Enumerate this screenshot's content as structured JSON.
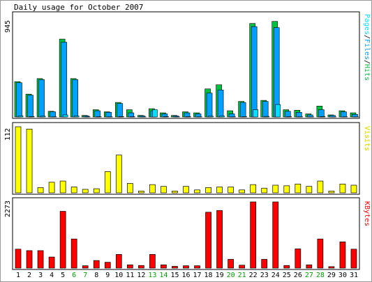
{
  "colors": {
    "background": "#ffffff",
    "frame_outer": "#999999",
    "panel_fill": "#ffffff",
    "hits": "#00c040",
    "files": "#00a0ff",
    "pages": "#00e0ff",
    "visits": "#ffff00",
    "kbytes": "#ff0000",
    "weekend_label": "#00a000",
    "weekday_label": "#000000"
  },
  "chart_data": [
    {
      "type": "bar",
      "title": "Daily usage for October 2007",
      "ylabel_max": "945",
      "legend": [
        "Pages",
        "Files",
        "Hits"
      ],
      "legend_separator": "/",
      "legend_colors": [
        "#00e0ff",
        "#00a0ff",
        "#00c040"
      ],
      "ylim": [
        0,
        945
      ],
      "categories": [
        "1",
        "2",
        "3",
        "4",
        "5",
        "6",
        "7",
        "8",
        "9",
        "10",
        "11",
        "12",
        "13",
        "14",
        "15",
        "16",
        "17",
        "18",
        "19",
        "20",
        "21",
        "22",
        "23",
        "24",
        "25",
        "26",
        "27",
        "28",
        "29",
        "30",
        "31"
      ],
      "weekend_days": [
        "6",
        "7",
        "13",
        "14",
        "20",
        "21",
        "27",
        "28"
      ],
      "series": [
        {
          "name": "Hits",
          "values": [
            340,
            220,
            370,
            55,
            750,
            370,
            15,
            70,
            50,
            140,
            70,
            15,
            80,
            40,
            15,
            50,
            40,
            270,
            310,
            60,
            150,
            900,
            160,
            920,
            70,
            65,
            30,
            105,
            20,
            60,
            40
          ]
        },
        {
          "name": "Files",
          "values": [
            330,
            210,
            360,
            50,
            720,
            360,
            10,
            60,
            45,
            130,
            40,
            10,
            60,
            30,
            10,
            40,
            30,
            230,
            260,
            30,
            140,
            870,
            150,
            860,
            55,
            45,
            20,
            70,
            15,
            50,
            25
          ]
        },
        {
          "name": "Pages",
          "values": [
            10,
            5,
            8,
            2,
            20,
            10,
            2,
            3,
            2,
            5,
            3,
            1,
            70,
            5,
            2,
            3,
            2,
            8,
            10,
            2,
            3,
            70,
            6,
            120,
            3,
            2,
            1,
            5,
            1,
            2,
            1
          ]
        }
      ]
    },
    {
      "type": "bar",
      "ylabel_max": "112",
      "legend": [
        "Visits"
      ],
      "legend_colors": [
        "#ffff00"
      ],
      "ylim": [
        0,
        112
      ],
      "categories": [
        "1",
        "2",
        "3",
        "4",
        "5",
        "6",
        "7",
        "8",
        "9",
        "10",
        "11",
        "12",
        "13",
        "14",
        "15",
        "16",
        "17",
        "18",
        "19",
        "20",
        "21",
        "22",
        "23",
        "24",
        "25",
        "26",
        "27",
        "28",
        "29",
        "30",
        "31"
      ],
      "series": [
        {
          "name": "Visits",
          "values": [
            112,
            108,
            9,
            18,
            20,
            10,
            6,
            7,
            36,
            64,
            16,
            3,
            14,
            11,
            3,
            11,
            5,
            9,
            10,
            10,
            5,
            14,
            8,
            13,
            12,
            15,
            11,
            20,
            3,
            15,
            13
          ]
        }
      ]
    },
    {
      "type": "bar",
      "ylabel_max": "2273",
      "legend": [
        "KBytes"
      ],
      "legend_colors": [
        "#ff0000"
      ],
      "ylim": [
        0,
        2273
      ],
      "categories": [
        "1",
        "2",
        "3",
        "4",
        "5",
        "6",
        "7",
        "8",
        "9",
        "10",
        "11",
        "12",
        "13",
        "14",
        "15",
        "16",
        "17",
        "18",
        "19",
        "20",
        "21",
        "22",
        "23",
        "24",
        "25",
        "26",
        "27",
        "28",
        "29",
        "30",
        "31"
      ],
      "series": [
        {
          "name": "KBytes",
          "values": [
            650,
            600,
            600,
            380,
            1950,
            1000,
            80,
            260,
            200,
            470,
            110,
            90,
            470,
            110,
            60,
            80,
            80,
            1920,
            1980,
            300,
            100,
            2273,
            300,
            2273,
            90,
            660,
            110,
            1000,
            50,
            900,
            650
          ]
        }
      ]
    }
  ]
}
